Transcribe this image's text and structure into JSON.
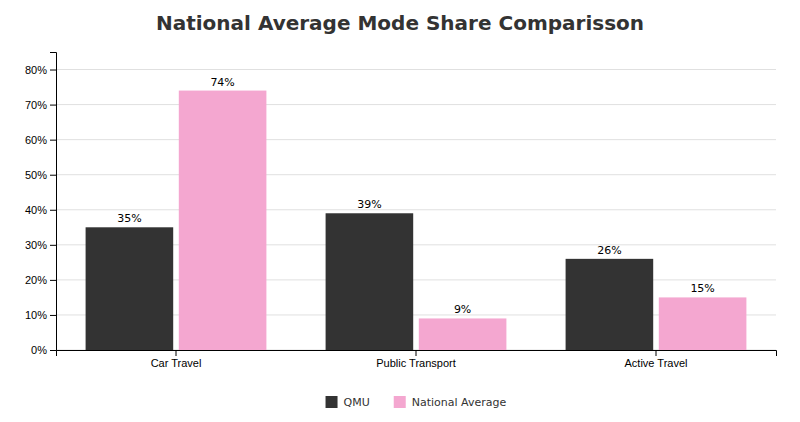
{
  "chart_data": {
    "type": "bar",
    "title": "National Average Mode Share Comparisson",
    "categories": [
      "Car Travel",
      "Public Transport",
      "Active Travel"
    ],
    "series": [
      {
        "name": "QMU",
        "color": "#333333",
        "values": [
          0.35,
          0.39,
          0.26
        ],
        "value_labels": [
          "35%",
          "39%",
          "26%"
        ]
      },
      {
        "name": "National Average",
        "color": "#f4a7d0",
        "values": [
          0.74,
          0.09,
          0.15
        ],
        "value_labels": [
          "74%",
          "9%",
          "15%"
        ]
      }
    ],
    "ylim": [
      0,
      0.85
    ],
    "yticks": [
      {
        "value": 0,
        "label": "0%"
      },
      {
        "value": 0.1,
        "label": "10%"
      },
      {
        "value": 0.2,
        "label": "20%"
      },
      {
        "value": 0.3,
        "label": "30%"
      },
      {
        "value": 0.4,
        "label": "40%"
      },
      {
        "value": 0.5,
        "label": "50%"
      },
      {
        "value": 0.6,
        "label": "60%"
      },
      {
        "value": 0.7,
        "label": "70%"
      },
      {
        "value": 0.8,
        "label": "80%"
      }
    ],
    "grid": true,
    "data_labels": true,
    "legend": "bottom"
  }
}
